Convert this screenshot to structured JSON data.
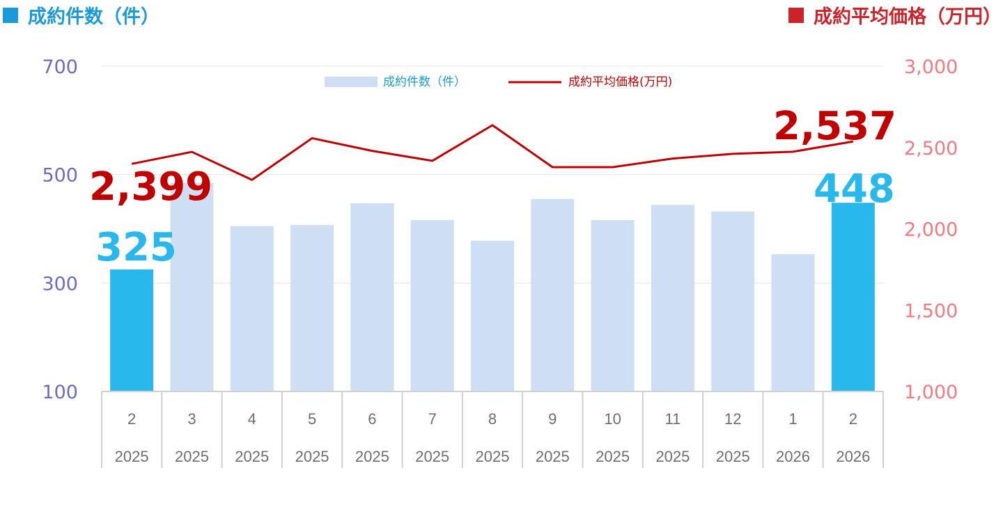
{
  "header": {
    "left_title": "成約件数（件）",
    "right_title": "成約平均価格（万円）",
    "left_color": "#1a9ad9",
    "right_color": "#cc2229"
  },
  "chart_data": {
    "type": "bar",
    "categories": [
      "2",
      "3",
      "4",
      "5",
      "6",
      "7",
      "8",
      "9",
      "10",
      "11",
      "12",
      "1",
      "2"
    ],
    "years": [
      "2025",
      "2025",
      "2025",
      "2025",
      "2025",
      "2025",
      "2025",
      "2025",
      "2025",
      "2025",
      "2025",
      "2026",
      "2026"
    ],
    "series": [
      {
        "name": "成約件数（件）",
        "type": "bar",
        "axis": "left",
        "values": [
          325,
          485,
          405,
          407,
          447,
          416,
          378,
          455,
          416,
          444,
          432,
          353,
          448
        ],
        "color": "#cfdff3",
        "highlight_color": "#29b8ec",
        "highlight_indices": [
          0,
          12
        ]
      },
      {
        "name": "成約平均価格(万円)",
        "type": "line",
        "axis": "right",
        "values": [
          2399,
          2473,
          2301,
          2557,
          2479,
          2418,
          2637,
          2379,
          2379,
          2432,
          2461,
          2474,
          2537
        ],
        "color": "#c00000"
      }
    ],
    "y_left": {
      "ylim": [
        100,
        700
      ],
      "ticks": [
        "100",
        "300",
        "500",
        "700"
      ],
      "color": "#6b6bbf"
    },
    "y_right": {
      "ylim": [
        1000,
        3000
      ],
      "ticks": [
        "1,000",
        "1,500",
        "2,000",
        "2,500",
        "3,000"
      ],
      "color": "#f07a80"
    },
    "annotations": [
      {
        "text": "2,399",
        "series": "line",
        "index": 0,
        "color": "#c00000"
      },
      {
        "text": "2,537",
        "series": "line",
        "index": 12,
        "color": "#c00000"
      },
      {
        "text": "325",
        "series": "bar",
        "index": 0,
        "color": "#29b8ec"
      },
      {
        "text": "448",
        "series": "bar",
        "index": 12,
        "color": "#29b8ec"
      }
    ],
    "legend": {
      "placement": "top-center"
    },
    "grid": true
  }
}
